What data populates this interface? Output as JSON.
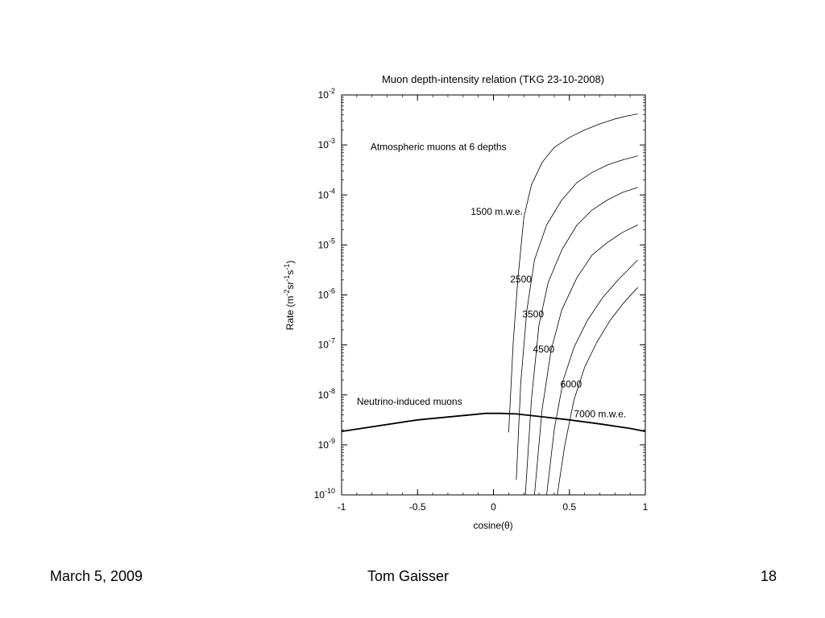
{
  "chart_data": {
    "type": "line",
    "title": "Muon depth-intensity relation (TKG 23-10-2008)",
    "xlabel": "cosine(θ)",
    "ylabel": {
      "prefix": "Rate (m",
      "parts": [
        {
          "text": "-2",
          "sup": true
        },
        {
          "text": "sr",
          "sup": false
        },
        {
          "text": "-1",
          "sup": true
        },
        {
          "text": "s",
          "sup": false
        },
        {
          "text": "-1",
          "sup": true
        },
        {
          "text": ")",
          "sup": false
        }
      ]
    },
    "xlim": [
      -1,
      1
    ],
    "ylim_log10": [
      -10,
      -2
    ],
    "y_scale": "log",
    "grid": false,
    "x_ticks": [
      {
        "value": -1,
        "label": "-1"
      },
      {
        "value": -0.5,
        "label": "-0.5"
      },
      {
        "value": 0,
        "label": "0"
      },
      {
        "value": 0.5,
        "label": "0.5"
      },
      {
        "value": 1,
        "label": "1"
      }
    ],
    "y_ticks": [
      {
        "exp": -2,
        "base": "10",
        "sup": "-2"
      },
      {
        "exp": -3,
        "base": "10",
        "sup": "-3"
      },
      {
        "exp": -4,
        "base": "10",
        "sup": "-4"
      },
      {
        "exp": -5,
        "base": "10",
        "sup": "-5"
      },
      {
        "exp": -6,
        "base": "10",
        "sup": "-6"
      },
      {
        "exp": -7,
        "base": "10",
        "sup": "-7"
      },
      {
        "exp": -8,
        "base": "10",
        "sup": "-8"
      },
      {
        "exp": -9,
        "base": "10",
        "sup": "-9"
      },
      {
        "exp": -10,
        "base": "10",
        "sup": "-10"
      }
    ],
    "annotations": [
      {
        "text": "Atmospheric muons at 6 depths",
        "x": -0.81,
        "y_log10": -3.1
      },
      {
        "text": "1500 m.w.e.",
        "x": -0.15,
        "y_log10": -4.4
      },
      {
        "text": "2500",
        "x": 0.11,
        "y_log10": -5.75
      },
      {
        "text": "3500",
        "x": 0.19,
        "y_log10": -6.45
      },
      {
        "text": "4500",
        "x": 0.26,
        "y_log10": -7.15
      },
      {
        "text": "6000",
        "x": 0.44,
        "y_log10": -7.85
      },
      {
        "text": "7000 m.w.e.",
        "x": 0.53,
        "y_log10": -8.45
      },
      {
        "text": "Neutrino-induced muons",
        "x": -0.9,
        "y_log10": -8.2
      }
    ],
    "series": [
      {
        "name": "1500 m.w.e.",
        "x": [
          0.1,
          0.13,
          0.16,
          0.2,
          0.25,
          0.32,
          0.4,
          0.5,
          0.6,
          0.7,
          0.8,
          0.88,
          0.95
        ],
        "y_log10": [
          -8.75,
          -6.95,
          -5.7,
          -4.45,
          -3.8,
          -3.35,
          -3.05,
          -2.85,
          -2.7,
          -2.58,
          -2.48,
          -2.42,
          -2.38
        ]
      },
      {
        "name": "2500",
        "x": [
          0.15,
          0.18,
          0.22,
          0.27,
          0.35,
          0.45,
          0.55,
          0.65,
          0.75,
          0.85,
          0.95
        ],
        "y_log10": [
          -9.7,
          -7.75,
          -6.3,
          -5.3,
          -4.6,
          -4.1,
          -3.75,
          -3.55,
          -3.4,
          -3.3,
          -3.22
        ]
      },
      {
        "name": "3500",
        "x": [
          0.21,
          0.25,
          0.3,
          0.36,
          0.45,
          0.55,
          0.65,
          0.75,
          0.85,
          0.95
        ],
        "y_log10": [
          -10,
          -8.1,
          -6.6,
          -5.75,
          -5.1,
          -4.6,
          -4.3,
          -4.1,
          -3.95,
          -3.85
        ]
      },
      {
        "name": "4500",
        "x": [
          0.27,
          0.32,
          0.38,
          0.45,
          0.55,
          0.65,
          0.75,
          0.85,
          0.95
        ],
        "y_log10": [
          -10,
          -8.3,
          -7.1,
          -6.3,
          -5.65,
          -5.2,
          -4.95,
          -4.75,
          -4.6
        ]
      },
      {
        "name": "6000",
        "x": [
          0.35,
          0.4,
          0.46,
          0.53,
          0.62,
          0.72,
          0.82,
          0.95
        ],
        "y_log10": [
          -10,
          -8.7,
          -7.7,
          -7.05,
          -6.5,
          -6.05,
          -5.7,
          -5.3
        ]
      },
      {
        "name": "7000 m.w.e.",
        "x": [
          0.42,
          0.47,
          0.53,
          0.6,
          0.68,
          0.77,
          0.86,
          0.95
        ],
        "y_log10": [
          -10,
          -9.0,
          -8.1,
          -7.45,
          -6.95,
          -6.5,
          -6.15,
          -5.85
        ]
      },
      {
        "name": "Neutrino-induced muons",
        "x": [
          -1,
          -0.5,
          -0.05,
          0.05,
          0.15,
          0.3,
          0.5,
          0.7,
          0.9,
          1
        ],
        "y_log10": [
          -8.73,
          -8.5,
          -8.37,
          -8.37,
          -8.38,
          -8.43,
          -8.5,
          -8.58,
          -8.67,
          -8.73
        ]
      }
    ]
  },
  "footer": {
    "date": "March 5, 2009",
    "author": "Tom Gaisser",
    "page": "18"
  }
}
